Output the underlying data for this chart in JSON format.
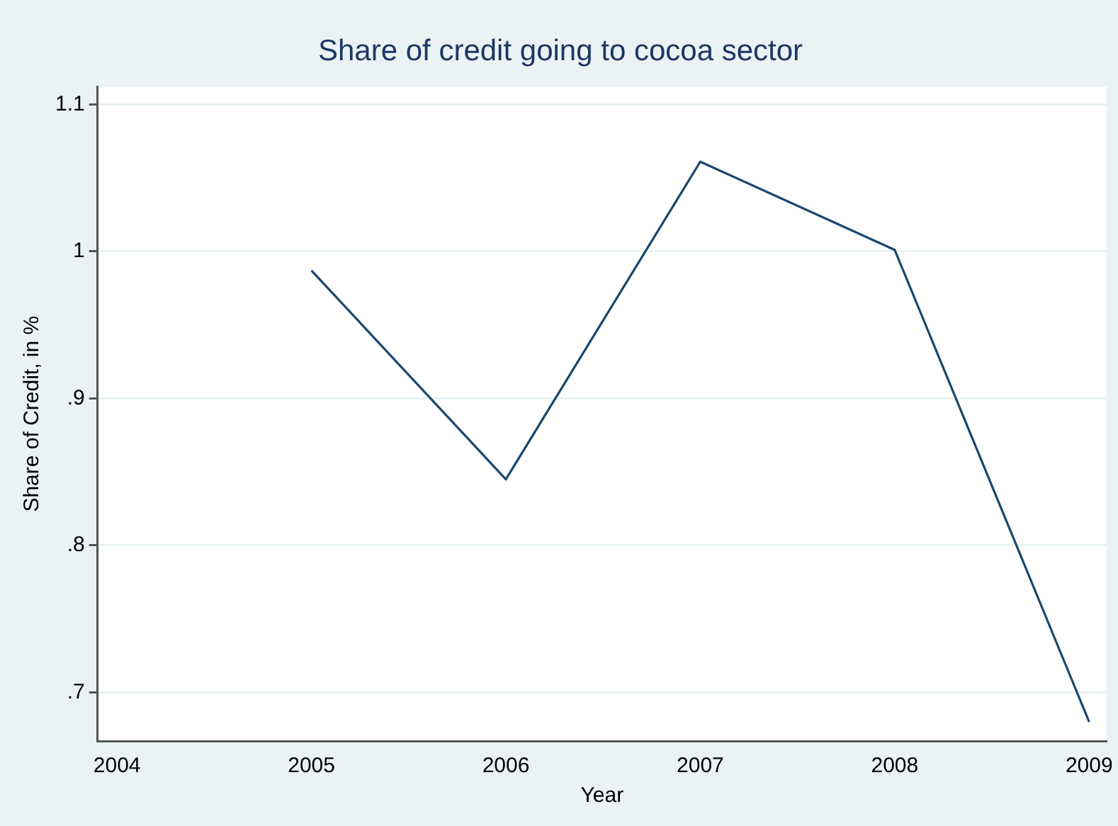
{
  "chart_data": {
    "type": "line",
    "title": "Share of credit going to cocoa sector",
    "xlabel": "Year",
    "ylabel": "Share of Credit, in %",
    "x": [
      2005,
      2006,
      2007,
      2008,
      2009
    ],
    "series": [
      {
        "color": "#1a476f",
        "values": [
          0.987,
          0.845,
          1.061,
          1.001,
          0.68
        ]
      }
    ],
    "xlim": [
      2003.9,
      2009.09
    ],
    "xticks": [
      2004,
      2005,
      2006,
      2007,
      2008,
      2009
    ],
    "ylim": [
      0.667,
      1.112
    ],
    "yticks": [
      {
        "value": 0.7,
        "label": ".7"
      },
      {
        "value": 0.8,
        "label": ".8"
      },
      {
        "value": 0.9,
        "label": ".9"
      },
      {
        "value": 1,
        "label": "1"
      },
      {
        "value": 1.1,
        "label": "1.1"
      }
    ],
    "grid": "y",
    "legend": false,
    "marker": "none",
    "line_style": "solid"
  }
}
